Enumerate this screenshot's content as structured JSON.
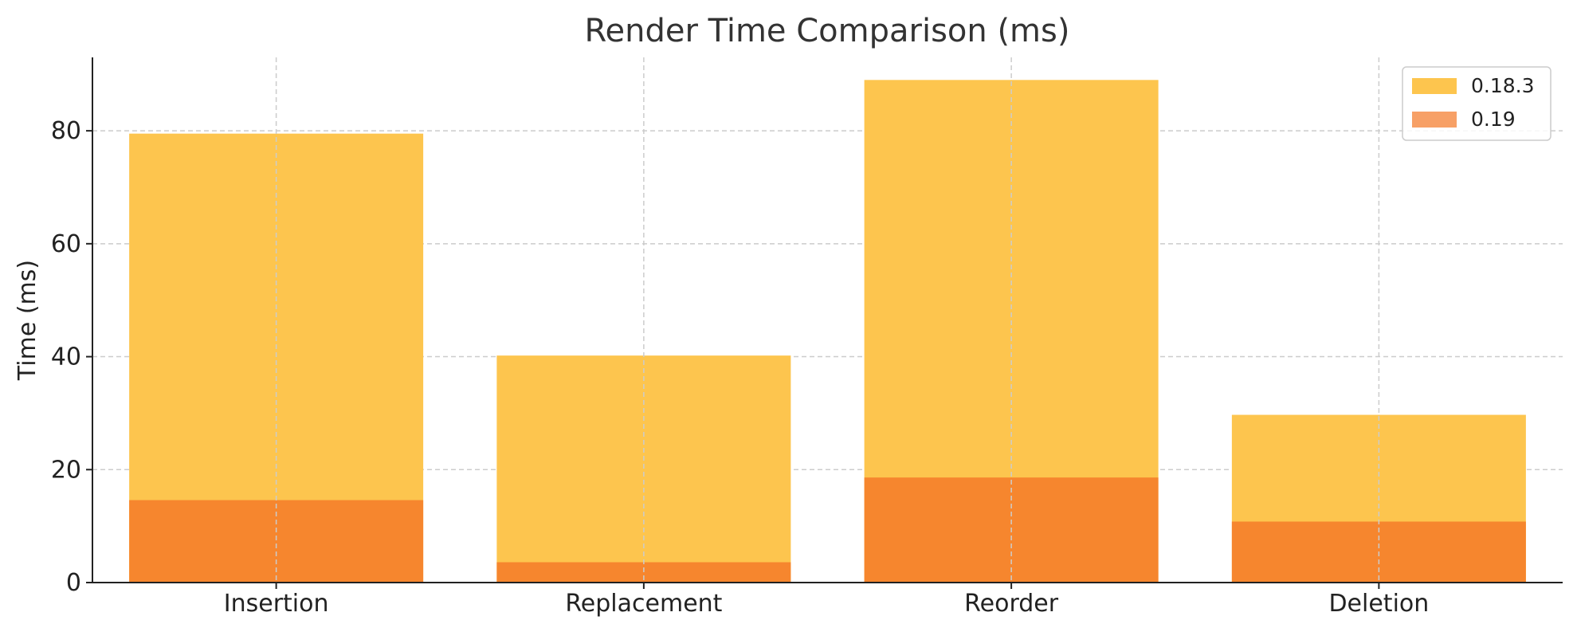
{
  "chart_data": {
    "type": "bar",
    "title": "Render Time Comparison (ms)",
    "xlabel": "",
    "ylabel": "Time (ms)",
    "categories": [
      "Insertion",
      "Replacement",
      "Reorder",
      "Deletion"
    ],
    "ylim": [
      0,
      93
    ],
    "yticks": [
      0,
      20,
      40,
      60,
      80
    ],
    "grid": true,
    "legend_position": "top-right",
    "overlay": true,
    "series": [
      {
        "name": "0.18.3",
        "values": [
          79.5,
          40.2,
          89.0,
          29.7
        ],
        "color": "#fdc54e"
      },
      {
        "name": "0.19",
        "values": [
          14.6,
          3.6,
          18.6,
          10.8
        ],
        "color": "#f6862e",
        "legend_color": "#f7a066"
      }
    ]
  }
}
